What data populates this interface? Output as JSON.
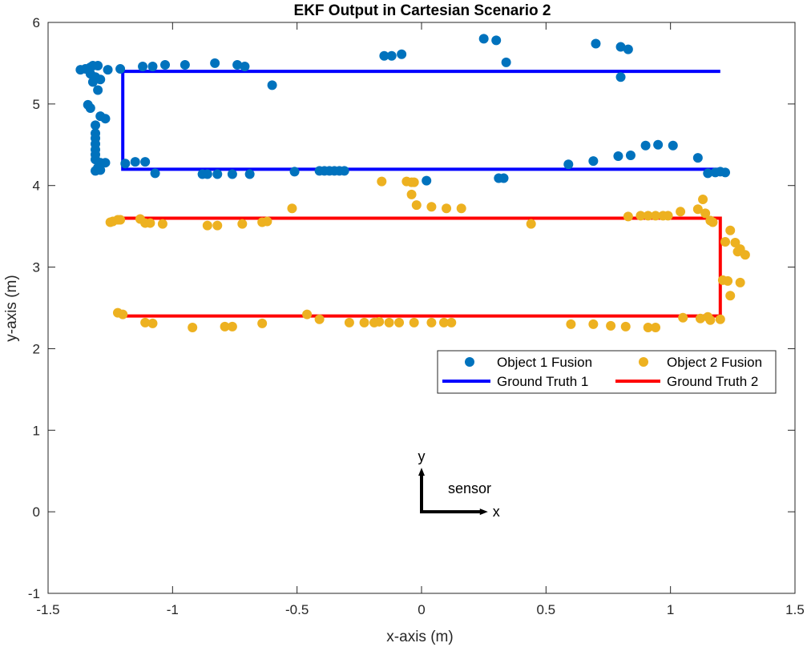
{
  "chart_data": {
    "type": "scatter",
    "title": "EKF Output in Cartesian Scenario 2",
    "xlabel": "x-axis (m)",
    "ylabel": "y-axis (m)",
    "xlim": [
      -1.5,
      1.5
    ],
    "ylim": [
      -1,
      6
    ],
    "xticks": [
      -1.5,
      -1,
      -0.5,
      0,
      0.5,
      1,
      1.5
    ],
    "xtick_labels": [
      "-1.5",
      "-1",
      "-0.5",
      "0",
      "0.5",
      "1",
      "1.5"
    ],
    "yticks": [
      -1,
      0,
      1,
      2,
      3,
      4,
      5,
      6
    ],
    "ytick_labels": [
      "-1",
      "0",
      "1",
      "2",
      "3",
      "4",
      "5",
      "6"
    ],
    "grid": false,
    "legend_position": "right, below the data",
    "series": [
      {
        "name": "Object 1 Fusion",
        "kind": "scatter",
        "color": "#0072BD",
        "points": [
          [
            -1.37,
            5.42
          ],
          [
            -1.35,
            5.43
          ],
          [
            -1.33,
            5.45
          ],
          [
            -1.32,
            5.47
          ],
          [
            -1.3,
            5.47
          ],
          [
            -1.33,
            5.37
          ],
          [
            -1.31,
            5.33
          ],
          [
            -1.32,
            5.27
          ],
          [
            -1.29,
            5.3
          ],
          [
            -1.3,
            5.17
          ],
          [
            -1.26,
            5.42
          ],
          [
            -1.21,
            5.43
          ],
          [
            -1.34,
            4.99
          ],
          [
            -1.33,
            4.95
          ],
          [
            -1.29,
            4.85
          ],
          [
            -1.27,
            4.82
          ],
          [
            -1.31,
            4.74
          ],
          [
            -1.31,
            4.64
          ],
          [
            -1.31,
            4.58
          ],
          [
            -1.31,
            4.51
          ],
          [
            -1.31,
            4.44
          ],
          [
            -1.31,
            4.38
          ],
          [
            -1.31,
            4.32
          ],
          [
            -1.29,
            4.28
          ],
          [
            -1.27,
            4.28
          ],
          [
            -1.3,
            4.22
          ],
          [
            -1.31,
            4.18
          ],
          [
            -1.29,
            4.19
          ],
          [
            -1.19,
            4.27
          ],
          [
            -1.15,
            4.29
          ],
          [
            -1.11,
            4.29
          ],
          [
            -1.07,
            4.15
          ],
          [
            -1.12,
            5.46
          ],
          [
            -1.08,
            5.46
          ],
          [
            -1.03,
            5.48
          ],
          [
            -0.95,
            5.48
          ],
          [
            -0.83,
            5.5
          ],
          [
            -0.74,
            5.48
          ],
          [
            -0.71,
            5.46
          ],
          [
            -0.6,
            5.23
          ],
          [
            -0.88,
            4.14
          ],
          [
            -0.86,
            4.14
          ],
          [
            -0.82,
            4.14
          ],
          [
            -0.76,
            4.14
          ],
          [
            -0.69,
            4.14
          ],
          [
            -0.51,
            4.17
          ],
          [
            -0.41,
            4.18
          ],
          [
            -0.39,
            4.18
          ],
          [
            -0.37,
            4.18
          ],
          [
            -0.35,
            4.18
          ],
          [
            -0.33,
            4.18
          ],
          [
            -0.31,
            4.18
          ],
          [
            0.02,
            4.06
          ],
          [
            -0.15,
            5.59
          ],
          [
            -0.12,
            5.59
          ],
          [
            -0.08,
            5.61
          ],
          [
            0.25,
            5.8
          ],
          [
            0.3,
            5.78
          ],
          [
            0.34,
            5.51
          ],
          [
            0.7,
            5.74
          ],
          [
            0.8,
            5.7
          ],
          [
            0.83,
            5.67
          ],
          [
            0.8,
            5.33
          ],
          [
            0.31,
            4.09
          ],
          [
            0.33,
            4.09
          ],
          [
            0.59,
            4.26
          ],
          [
            0.69,
            4.3
          ],
          [
            0.79,
            4.36
          ],
          [
            0.84,
            4.37
          ],
          [
            0.9,
            4.49
          ],
          [
            0.95,
            4.5
          ],
          [
            1.01,
            4.49
          ],
          [
            1.11,
            4.34
          ],
          [
            1.15,
            4.15
          ],
          [
            1.18,
            4.16
          ],
          [
            1.2,
            4.17
          ],
          [
            1.22,
            4.16
          ]
        ]
      },
      {
        "name": "Object 2 Fusion",
        "kind": "scatter",
        "color": "#EDB120",
        "points": [
          [
            -1.25,
            3.55
          ],
          [
            -1.24,
            3.56
          ],
          [
            -1.22,
            3.58
          ],
          [
            -1.21,
            3.58
          ],
          [
            -1.13,
            3.59
          ],
          [
            -1.11,
            3.54
          ],
          [
            -1.09,
            3.54
          ],
          [
            -1.04,
            3.53
          ],
          [
            -0.86,
            3.51
          ],
          [
            -0.82,
            3.51
          ],
          [
            -0.72,
            3.53
          ],
          [
            -0.64,
            3.55
          ],
          [
            -0.62,
            3.56
          ],
          [
            -0.52,
            3.72
          ],
          [
            -0.16,
            4.05
          ],
          [
            -0.06,
            4.05
          ],
          [
            -0.04,
            4.04
          ],
          [
            -0.03,
            4.04
          ],
          [
            -0.04,
            3.89
          ],
          [
            -0.02,
            3.76
          ],
          [
            0.04,
            3.74
          ],
          [
            0.1,
            3.72
          ],
          [
            0.16,
            3.72
          ],
          [
            0.44,
            3.53
          ],
          [
            0.83,
            3.62
          ],
          [
            0.88,
            3.63
          ],
          [
            0.91,
            3.63
          ],
          [
            0.94,
            3.63
          ],
          [
            0.97,
            3.63
          ],
          [
            0.99,
            3.63
          ],
          [
            1.04,
            3.68
          ],
          [
            1.11,
            3.71
          ],
          [
            1.13,
            3.83
          ],
          [
            1.14,
            3.66
          ],
          [
            1.16,
            3.57
          ],
          [
            1.17,
            3.55
          ],
          [
            1.22,
            3.31
          ],
          [
            1.24,
            3.45
          ],
          [
            1.26,
            3.3
          ],
          [
            1.27,
            3.19
          ],
          [
            1.28,
            3.22
          ],
          [
            1.3,
            3.15
          ],
          [
            1.21,
            2.84
          ],
          [
            1.23,
            2.83
          ],
          [
            1.28,
            2.81
          ],
          [
            1.24,
            2.65
          ],
          [
            -1.22,
            2.44
          ],
          [
            -1.2,
            2.42
          ],
          [
            -1.11,
            2.32
          ],
          [
            -1.08,
            2.31
          ],
          [
            -0.92,
            2.26
          ],
          [
            -0.79,
            2.27
          ],
          [
            -0.76,
            2.27
          ],
          [
            -0.64,
            2.31
          ],
          [
            -0.46,
            2.42
          ],
          [
            -0.41,
            2.36
          ],
          [
            -0.29,
            2.32
          ],
          [
            -0.23,
            2.32
          ],
          [
            -0.19,
            2.32
          ],
          [
            -0.17,
            2.33
          ],
          [
            -0.13,
            2.32
          ],
          [
            -0.09,
            2.32
          ],
          [
            -0.03,
            2.32
          ],
          [
            0.04,
            2.32
          ],
          [
            0.09,
            2.32
          ],
          [
            0.12,
            2.32
          ],
          [
            0.6,
            2.3
          ],
          [
            0.69,
            2.3
          ],
          [
            0.76,
            2.28
          ],
          [
            0.82,
            2.27
          ],
          [
            0.91,
            2.26
          ],
          [
            0.94,
            2.26
          ],
          [
            1.05,
            2.38
          ],
          [
            1.12,
            2.37
          ],
          [
            1.15,
            2.39
          ],
          [
            1.16,
            2.35
          ],
          [
            1.2,
            2.36
          ]
        ]
      },
      {
        "name": "Ground Truth 1",
        "kind": "line",
        "color": "#0000FF",
        "points": [
          [
            1.2,
            5.4
          ],
          [
            -1.2,
            5.4
          ],
          [
            -1.2,
            4.2
          ],
          [
            1.2,
            4.2
          ]
        ]
      },
      {
        "name": "Ground Truth 2",
        "kind": "line",
        "color": "#FF0000",
        "points": [
          [
            -1.2,
            3.6
          ],
          [
            1.2,
            3.6
          ],
          [
            1.2,
            2.4
          ],
          [
            -1.2,
            2.4
          ]
        ]
      }
    ],
    "annotation": {
      "label_y": "y",
      "label_x": "x",
      "label_sensor": "sensor",
      "origin": [
        0,
        0
      ],
      "y_tip": [
        0,
        0.52
      ],
      "x_tip": [
        0.26,
        0
      ]
    }
  }
}
